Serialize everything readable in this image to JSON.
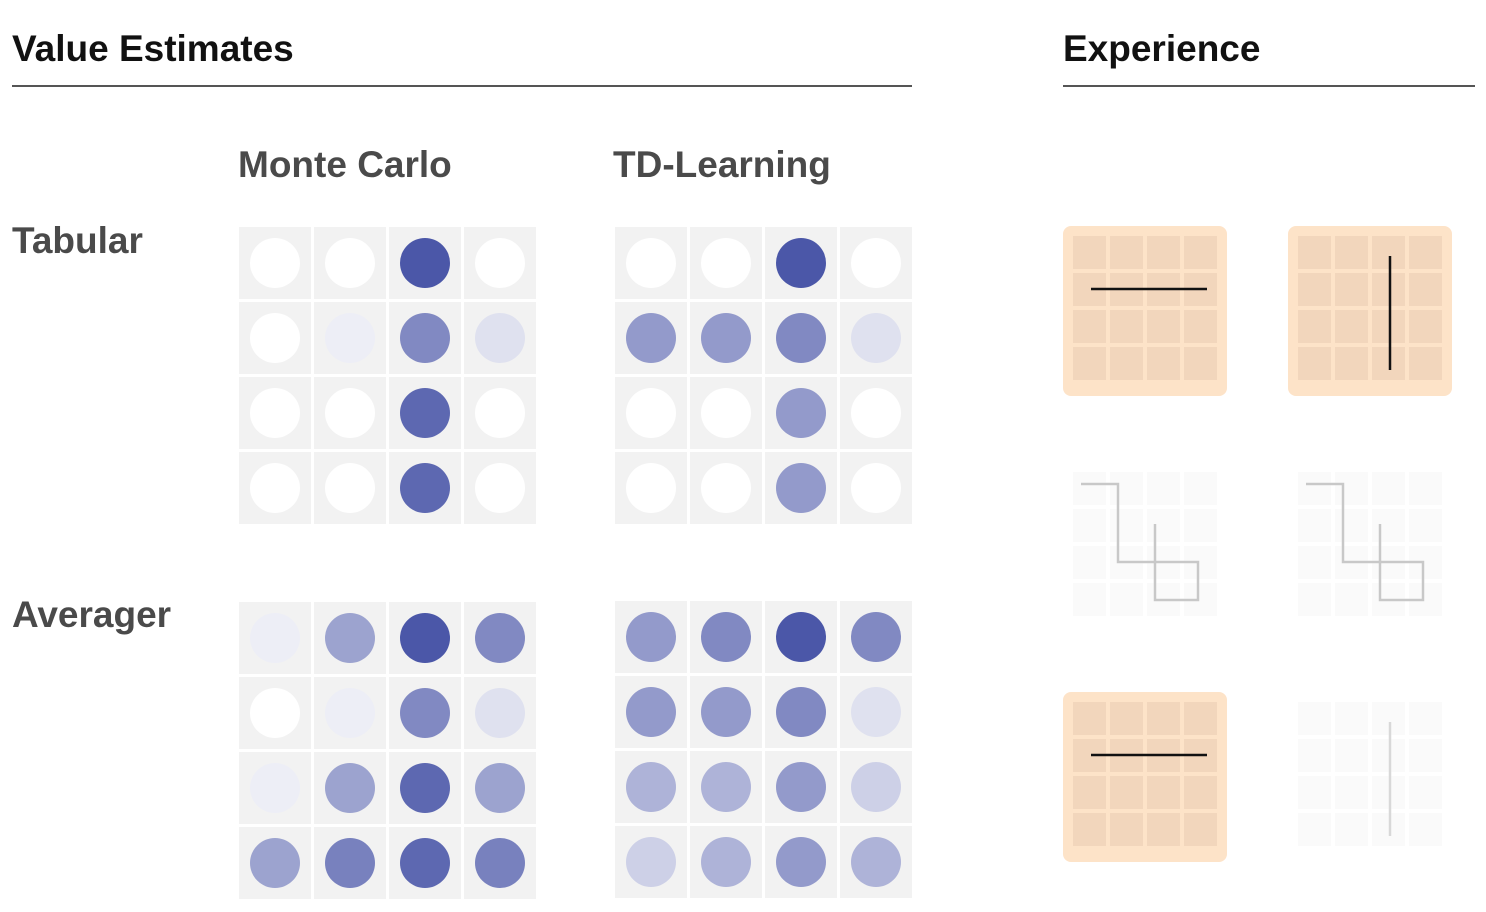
{
  "headers": {
    "value_estimates": "Value Estimates",
    "experience": "Experience"
  },
  "columns": {
    "monte_carlo": "Monte Carlo",
    "td_learning": "TD-Learning"
  },
  "rows": {
    "tabular": "Tabular",
    "averager": "Averager"
  },
  "colors": {
    "cell_bg": "#f2f2f2",
    "dot_high": "#4b57a8",
    "dot_low": "#ffffff",
    "experience_active": "#fde3c8",
    "rule": "#555555"
  },
  "value_grids": {
    "tabular_monte_carlo": [
      [
        0.0,
        0.0,
        1.0,
        0.0
      ],
      [
        0.0,
        0.1,
        0.7,
        0.18
      ],
      [
        0.0,
        0.0,
        0.9,
        0.0
      ],
      [
        0.0,
        0.0,
        0.9,
        0.0
      ]
    ],
    "tabular_td_learning": [
      [
        0.0,
        0.0,
        1.0,
        0.0
      ],
      [
        0.6,
        0.6,
        0.7,
        0.18
      ],
      [
        0.0,
        0.0,
        0.6,
        0.0
      ],
      [
        0.0,
        0.0,
        0.6,
        0.0
      ]
    ],
    "averager_monte_carlo": [
      [
        0.1,
        0.55,
        1.0,
        0.7
      ],
      [
        0.0,
        0.1,
        0.7,
        0.18
      ],
      [
        0.1,
        0.55,
        0.9,
        0.55
      ],
      [
        0.55,
        0.75,
        0.9,
        0.75
      ]
    ],
    "averager_td_learning": [
      [
        0.6,
        0.7,
        1.0,
        0.7
      ],
      [
        0.6,
        0.6,
        0.7,
        0.18
      ],
      [
        0.45,
        0.45,
        0.6,
        0.28
      ],
      [
        0.28,
        0.45,
        0.6,
        0.45
      ]
    ]
  },
  "experience_panels": [
    {
      "id": "exp-1",
      "path": "horizontal",
      "active": true
    },
    {
      "id": "exp-2",
      "path": "vertical",
      "active": true
    },
    {
      "id": "exp-3",
      "path": "loop",
      "active": false
    },
    {
      "id": "exp-4",
      "path": "loop",
      "active": false
    },
    {
      "id": "exp-5",
      "path": "horizontal",
      "active": true
    },
    {
      "id": "exp-6",
      "path": "vertical",
      "active": false
    }
  ]
}
